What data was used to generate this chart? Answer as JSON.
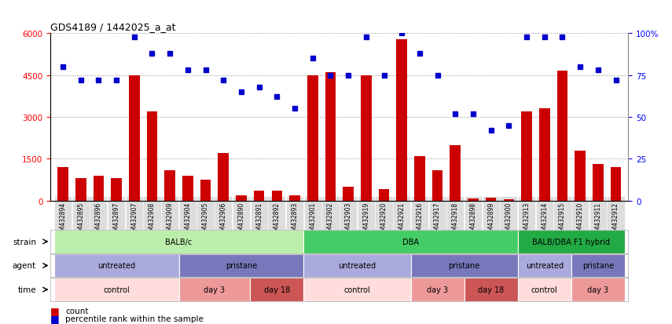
{
  "title": "GDS4189 / 1442025_a_at",
  "samples": [
    "GSM432894",
    "GSM432895",
    "GSM432896",
    "GSM432897",
    "GSM432907",
    "GSM432908",
    "GSM432909",
    "GSM432904",
    "GSM432905",
    "GSM432906",
    "GSM432890",
    "GSM432891",
    "GSM432892",
    "GSM432893",
    "GSM432901",
    "GSM432902",
    "GSM432903",
    "GSM432919",
    "GSM432920",
    "GSM432921",
    "GSM432916",
    "GSM432917",
    "GSM432918",
    "GSM432898",
    "GSM432899",
    "GSM432900",
    "GSM432913",
    "GSM432914",
    "GSM432915",
    "GSM432910",
    "GSM432911",
    "GSM432912"
  ],
  "counts": [
    1200,
    800,
    900,
    800,
    4500,
    3200,
    1100,
    900,
    750,
    1700,
    200,
    350,
    350,
    200,
    4500,
    4600,
    500,
    4500,
    400,
    5800,
    1600,
    1100,
    2000,
    80,
    100,
    60,
    3200,
    3300,
    4650,
    1800,
    1300,
    1200
  ],
  "percentiles": [
    80,
    72,
    72,
    72,
    98,
    88,
    88,
    78,
    78,
    72,
    65,
    68,
    62,
    55,
    85,
    75,
    75,
    98,
    75,
    100,
    88,
    75,
    52,
    52,
    42,
    45,
    98,
    98,
    98,
    80,
    78,
    72
  ],
  "bar_color": "#cc0000",
  "dot_color": "#0000cc",
  "ylim_left": [
    0,
    6000
  ],
  "ylim_right": [
    0,
    100
  ],
  "yticks_left": [
    0,
    1500,
    3000,
    4500,
    6000
  ],
  "yticks_right": [
    0,
    25,
    50,
    75,
    100
  ],
  "strain_groups": [
    {
      "label": "BALB/c",
      "start": 0,
      "end": 14,
      "color": "#bbeeaa"
    },
    {
      "label": "DBA",
      "start": 14,
      "end": 26,
      "color": "#44cc66"
    },
    {
      "label": "BALB/DBA F1 hybrid",
      "start": 26,
      "end": 32,
      "color": "#22aa44"
    }
  ],
  "agent_groups": [
    {
      "label": "untreated",
      "start": 0,
      "end": 7,
      "color": "#aaaadd"
    },
    {
      "label": "pristane",
      "start": 7,
      "end": 14,
      "color": "#7777bb"
    },
    {
      "label": "untreated",
      "start": 14,
      "end": 20,
      "color": "#aaaadd"
    },
    {
      "label": "pristane",
      "start": 20,
      "end": 26,
      "color": "#7777bb"
    },
    {
      "label": "untreated",
      "start": 26,
      "end": 29,
      "color": "#aaaadd"
    },
    {
      "label": "pristane",
      "start": 29,
      "end": 32,
      "color": "#7777bb"
    }
  ],
  "time_groups": [
    {
      "label": "control",
      "start": 0,
      "end": 7,
      "color": "#ffdddd"
    },
    {
      "label": "day 3",
      "start": 7,
      "end": 11,
      "color": "#ee9999"
    },
    {
      "label": "day 18",
      "start": 11,
      "end": 14,
      "color": "#cc5555"
    },
    {
      "label": "control",
      "start": 14,
      "end": 20,
      "color": "#ffdddd"
    },
    {
      "label": "day 3",
      "start": 20,
      "end": 23,
      "color": "#ee9999"
    },
    {
      "label": "day 18",
      "start": 23,
      "end": 26,
      "color": "#cc5555"
    },
    {
      "label": "control",
      "start": 26,
      "end": 29,
      "color": "#ffdddd"
    },
    {
      "label": "day 3",
      "start": 29,
      "end": 32,
      "color": "#ee9999"
    }
  ],
  "row_labels": [
    "strain",
    "agent",
    "time"
  ],
  "legend_items": [
    "count",
    "percentile rank within the sample"
  ],
  "background_color": "#ffffff",
  "grid_color": "#888888",
  "tick_bg_color": "#dddddd"
}
